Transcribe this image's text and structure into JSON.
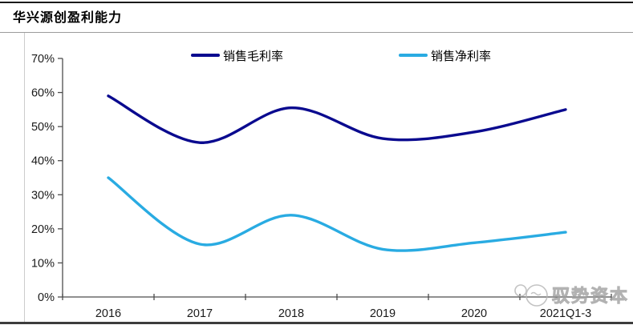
{
  "page": {
    "title": "华兴源创盈利能力",
    "watermark_text": "驭势资本"
  },
  "chart_data": {
    "type": "line",
    "title": "华兴源创盈利能力",
    "smooth": true,
    "grid": false,
    "legend_position": "top",
    "categories": [
      "2016",
      "2017",
      "2018",
      "2019",
      "2020",
      "2021Q1-3"
    ],
    "series": [
      {
        "name": "销售毛利率",
        "color": "#0a0a8f",
        "values": [
          59.0,
          45.3,
          55.5,
          46.5,
          48.4,
          55.0
        ]
      },
      {
        "name": "销售净利率",
        "color": "#29abe2",
        "values": [
          35.0,
          15.5,
          24.0,
          14.0,
          15.9,
          19.0
        ]
      }
    ],
    "ylim": [
      0,
      70
    ],
    "y_tick_step": 10,
    "y_tick_labels": [
      "0%",
      "10%",
      "20%",
      "30%",
      "40%",
      "50%",
      "60%",
      "70%"
    ],
    "colors": {
      "axis": "#4d4d4d",
      "text": "#1a1a1a",
      "watermark": "#a8a8a8"
    }
  }
}
